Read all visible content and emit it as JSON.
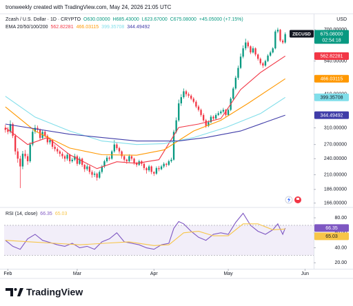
{
  "watermark": "tronweekly created with TradingView.com, May 24, 2026 21:05 UTC",
  "brand": "TradingView",
  "chart_data": [
    {
      "type": "candlestick",
      "title": "Zcash / U.S. Dollar · 1D · CRYPTO",
      "legend_values": [
        "O630.03000",
        "H685.43000",
        "L623.67000",
        "C675.08000",
        "+45.05000 (+7.15%)"
      ],
      "currency": "USD",
      "symbol": "ZECUSD",
      "price_label": "675.08000",
      "countdown": "02:54:18",
      "indicator_label": "EMA 20/50/100/200",
      "log_scale": true,
      "up_color": "#089981",
      "down_color": "#f23645",
      "xlim": [
        -0.5,
        124.5
      ],
      "ylim": [
        161,
        755
      ],
      "yticks": [
        {
          "value": 700,
          "label": "700.00000"
        },
        {
          "value": 540,
          "label": "540.00000"
        },
        {
          "value": 410,
          "label": "410.00000"
        },
        {
          "value": 310,
          "label": "310.00000"
        },
        {
          "value": 270,
          "label": "270.00000"
        },
        {
          "value": 240,
          "label": "240.00000"
        },
        {
          "value": 210,
          "label": "210.00000"
        },
        {
          "value": 186,
          "label": "186.00000"
        },
        {
          "value": 166,
          "label": "166.00000"
        }
      ],
      "ohlc": [
        [
          310,
          318,
          298,
          305
        ],
        [
          305,
          312,
          294,
          300
        ],
        [
          300,
          330,
          296,
          320
        ],
        [
          320,
          324,
          285,
          290
        ],
        [
          290,
          295,
          248,
          255
        ],
        [
          255,
          262,
          232,
          240
        ],
        [
          240,
          246,
          188,
          225
        ],
        [
          225,
          256,
          220,
          250
        ],
        [
          250,
          258,
          240,
          245
        ],
        [
          245,
          250,
          228,
          235
        ],
        [
          235,
          275,
          232,
          270
        ],
        [
          270,
          305,
          266,
          300
        ],
        [
          300,
          318,
          295,
          310
        ],
        [
          310,
          316,
          298,
          305
        ],
        [
          305,
          308,
          280,
          285
        ],
        [
          285,
          305,
          282,
          300
        ],
        [
          300,
          304,
          286,
          290
        ],
        [
          290,
          294,
          270,
          275
        ],
        [
          275,
          286,
          270,
          280
        ],
        [
          280,
          282,
          260,
          265
        ],
        [
          265,
          270,
          255,
          260
        ],
        [
          260,
          264,
          250,
          255
        ],
        [
          255,
          258,
          244,
          250
        ],
        [
          250,
          254,
          240,
          245
        ],
        [
          245,
          248,
          234,
          240
        ],
        [
          240,
          252,
          236,
          248
        ],
        [
          248,
          250,
          230,
          235
        ],
        [
          235,
          242,
          232,
          238
        ],
        [
          238,
          250,
          235,
          245
        ],
        [
          245,
          248,
          226,
          230
        ],
        [
          230,
          244,
          228,
          240
        ],
        [
          240,
          242,
          224,
          228
        ],
        [
          228,
          230,
          215,
          220
        ],
        [
          220,
          229,
          217,
          225
        ],
        [
          225,
          227,
          211,
          215
        ],
        [
          215,
          218,
          205,
          210
        ],
        [
          210,
          216,
          206,
          212
        ],
        [
          212,
          214,
          200,
          205
        ],
        [
          205,
          218,
          203,
          215
        ],
        [
          215,
          228,
          212,
          225
        ],
        [
          225,
          238,
          222,
          235
        ],
        [
          235,
          246,
          232,
          242
        ],
        [
          242,
          245,
          236,
          240
        ],
        [
          240,
          258,
          238,
          255
        ],
        [
          255,
          280,
          252,
          270
        ],
        [
          270,
          274,
          258,
          262
        ],
        [
          262,
          265,
          250,
          255
        ],
        [
          255,
          257,
          240,
          245
        ],
        [
          245,
          247,
          234,
          238
        ],
        [
          238,
          240,
          230,
          235
        ],
        [
          235,
          249,
          233,
          245
        ],
        [
          245,
          248,
          236,
          240
        ],
        [
          240,
          242,
          228,
          232
        ],
        [
          232,
          234,
          224,
          228
        ],
        [
          228,
          238,
          226,
          235
        ],
        [
          235,
          237,
          226,
          230
        ],
        [
          230,
          232,
          218,
          222
        ],
        [
          222,
          224,
          212,
          218
        ],
        [
          218,
          228,
          215,
          225
        ],
        [
          225,
          227,
          211,
          215
        ],
        [
          215,
          216,
          208,
          212
        ],
        [
          212,
          225,
          210,
          222
        ],
        [
          222,
          226,
          216,
          220
        ],
        [
          220,
          228,
          218,
          225
        ],
        [
          225,
          233,
          222,
          230
        ],
        [
          230,
          232,
          224,
          228
        ],
        [
          228,
          238,
          226,
          235
        ],
        [
          235,
          242,
          232,
          238
        ],
        [
          238,
          305,
          236,
          300
        ],
        [
          300,
          338,
          296,
          330
        ],
        [
          330,
          392,
          326,
          380
        ],
        [
          380,
          410,
          372,
          400
        ],
        [
          400,
          430,
          395,
          420
        ],
        [
          420,
          425,
          402,
          410
        ],
        [
          410,
          416,
          398,
          405
        ],
        [
          405,
          410,
          390,
          395
        ],
        [
          395,
          400,
          380,
          385
        ],
        [
          385,
          390,
          365,
          370
        ],
        [
          370,
          375,
          355,
          360
        ],
        [
          360,
          364,
          340,
          345
        ],
        [
          345,
          350,
          326,
          330
        ],
        [
          330,
          334,
          310,
          315
        ],
        [
          315,
          330,
          312,
          325
        ],
        [
          325,
          345,
          322,
          340
        ],
        [
          340,
          344,
          330,
          335
        ],
        [
          335,
          350,
          332,
          345
        ],
        [
          345,
          356,
          342,
          350
        ],
        [
          350,
          360,
          346,
          355
        ],
        [
          355,
          366,
          350,
          360
        ],
        [
          360,
          363,
          340,
          345
        ],
        [
          345,
          364,
          342,
          360
        ],
        [
          360,
          400,
          356,
          395
        ],
        [
          395,
          436,
          390,
          430
        ],
        [
          430,
          478,
          425,
          470
        ],
        [
          470,
          520,
          462,
          510
        ],
        [
          510,
          575,
          505,
          560
        ],
        [
          560,
          615,
          552,
          600
        ],
        [
          600,
          650,
          590,
          630
        ],
        [
          630,
          640,
          600,
          610
        ],
        [
          610,
          615,
          572,
          580
        ],
        [
          580,
          610,
          575,
          600
        ],
        [
          600,
          605,
          562,
          570
        ],
        [
          570,
          575,
          542,
          550
        ],
        [
          550,
          556,
          522,
          530
        ],
        [
          530,
          536,
          510,
          520
        ],
        [
          520,
          546,
          515,
          540
        ],
        [
          540,
          572,
          535,
          565
        ],
        [
          565,
          588,
          560,
          580
        ],
        [
          580,
          606,
          575,
          600
        ],
        [
          600,
          700,
          595,
          690
        ],
        [
          690,
          712,
          680,
          700
        ],
        [
          700,
          705,
          632,
          640
        ],
        [
          640,
          648,
          622,
          630.03
        ],
        [
          630.03,
          685.43,
          623.67,
          675.08
        ]
      ],
      "series": [
        {
          "color": "#f23645",
          "x": [
            0,
            9,
            17,
            26,
            37,
            45,
            53,
            62,
            70,
            78,
            87,
            95,
            103,
            113
          ],
          "values": [
            311,
            270,
            286,
            248,
            221,
            234,
            231,
            238,
            311,
            320,
            335,
            426,
            491,
            562.82281
          ]
        },
        {
          "color": "#ff9800",
          "x": [
            0,
            12,
            26,
            39,
            53,
            64,
            76,
            87,
            98,
            113
          ],
          "values": [
            369,
            302,
            262,
            248,
            247,
            258,
            302,
            330,
            380,
            466.03115
          ]
        },
        {
          "color": "#80deea",
          "x": [
            0,
            12,
            26,
            39,
            53,
            64,
            76,
            89,
            103,
            113
          ],
          "values": [
            403,
            339,
            302,
            278,
            270,
            272,
            286,
            311,
            349,
            399.35708
          ]
        },
        {
          "color": "#3f3ca8",
          "x": [
            0,
            26,
            53,
            70,
            81,
            95,
            113
          ],
          "values": [
            320,
            294,
            278,
            278,
            286,
            302,
            344.49492
          ]
        }
      ]
    },
    {
      "type": "line",
      "title": "RSI (14, close)",
      "xlim": [
        -0.5,
        124.5
      ],
      "ylim": [
        12,
        92
      ],
      "yticks": [
        {
          "value": 80,
          "label": "80.00"
        },
        {
          "value": 60,
          "label": "60.00"
        },
        {
          "value": 40,
          "label": "40.00"
        },
        {
          "value": 20,
          "label": "20.00"
        }
      ],
      "band": [
        30,
        70
      ],
      "band_color": "#7e57c2",
      "xticks": [
        {
          "value": 1,
          "label": "Feb"
        },
        {
          "value": 29,
          "label": "Mar"
        },
        {
          "value": 60,
          "label": "Apr"
        },
        {
          "value": 90,
          "label": "May"
        },
        {
          "value": 121,
          "label": "Jun"
        }
      ],
      "series": [
        {
          "color": "#7e57c2",
          "x": [
            0,
            3,
            6,
            9,
            12,
            15,
            18,
            21,
            24,
            27,
            30,
            33,
            36,
            39,
            42,
            45,
            48,
            51,
            54,
            57,
            60,
            63,
            66,
            68,
            70,
            72,
            75,
            78,
            81,
            84,
            87,
            90,
            93,
            96,
            99,
            102,
            105,
            108,
            110,
            112,
            113
          ],
          "values": [
            50,
            42,
            38,
            52,
            58,
            50,
            47,
            44,
            42,
            46,
            40,
            42,
            38,
            48,
            52,
            60,
            48,
            46,
            44,
            40,
            38,
            44,
            46,
            66,
            75,
            72,
            62,
            54,
            50,
            58,
            60,
            58,
            74,
            86,
            70,
            62,
            58,
            64,
            72,
            58,
            66.35
          ]
        },
        {
          "color": "#f7c548",
          "x": [
            0,
            10,
            20,
            30,
            40,
            50,
            60,
            66,
            72,
            78,
            84,
            90,
            96,
            102,
            108,
            113
          ],
          "values": [
            50,
            48,
            46,
            44,
            46,
            48,
            43,
            44,
            60,
            62,
            56,
            56,
            72,
            72,
            64,
            65.03
          ]
        }
      ]
    }
  ]
}
